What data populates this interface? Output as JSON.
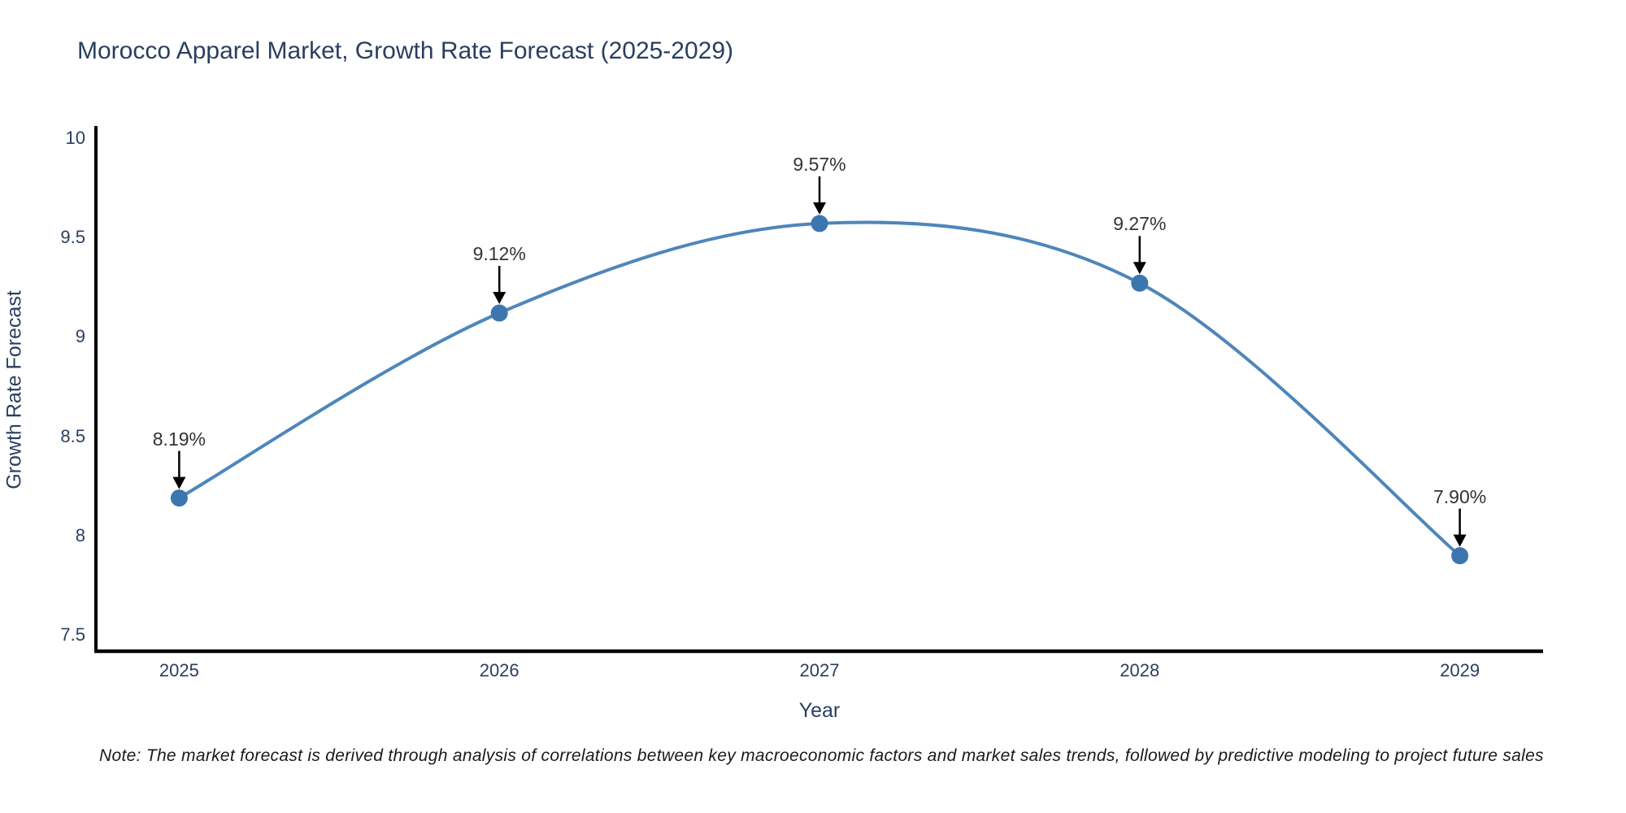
{
  "title": "Morocco Apparel Market, Growth Rate Forecast (2025-2029)",
  "note": "Note: The market forecast is derived through analysis of correlations between key macroeconomic factors and market sales trends, followed by predictive modeling to project future sales",
  "chart_data": {
    "type": "line",
    "title": "Morocco Apparel Market, Growth Rate Forecast (2025-2029)",
    "xlabel": "Year",
    "ylabel": "Growth Rate Forecast",
    "x": [
      2025,
      2026,
      2027,
      2028,
      2029
    ],
    "series": [
      {
        "name": "Growth Rate Forecast",
        "values": [
          8.19,
          9.12,
          9.57,
          9.27,
          7.9
        ]
      }
    ],
    "point_labels": [
      "8.19%",
      "9.12%",
      "9.57%",
      "9.27%",
      "7.90%"
    ],
    "xtick_labels": [
      "2025",
      "2026",
      "2027",
      "2028",
      "2029"
    ],
    "ytick_values": [
      7.5,
      8,
      8.5,
      9,
      9.5,
      10
    ],
    "ytick_labels": [
      "7.5",
      "8",
      "8.5",
      "9",
      "9.5",
      "10"
    ],
    "xlim": [
      2024.74,
      2029.26
    ],
    "ylim": [
      7.42,
      10.06
    ],
    "line_shape": "spline",
    "grid": false,
    "legend": "none",
    "annotation_style": "black-down-arrows",
    "colors": {
      "line": "#4e86ba",
      "marker": "#3c76af",
      "axis": "#000000",
      "axis_text": "#2a3f5f",
      "annotation_text": "#333333",
      "background": "#ffffff"
    }
  }
}
